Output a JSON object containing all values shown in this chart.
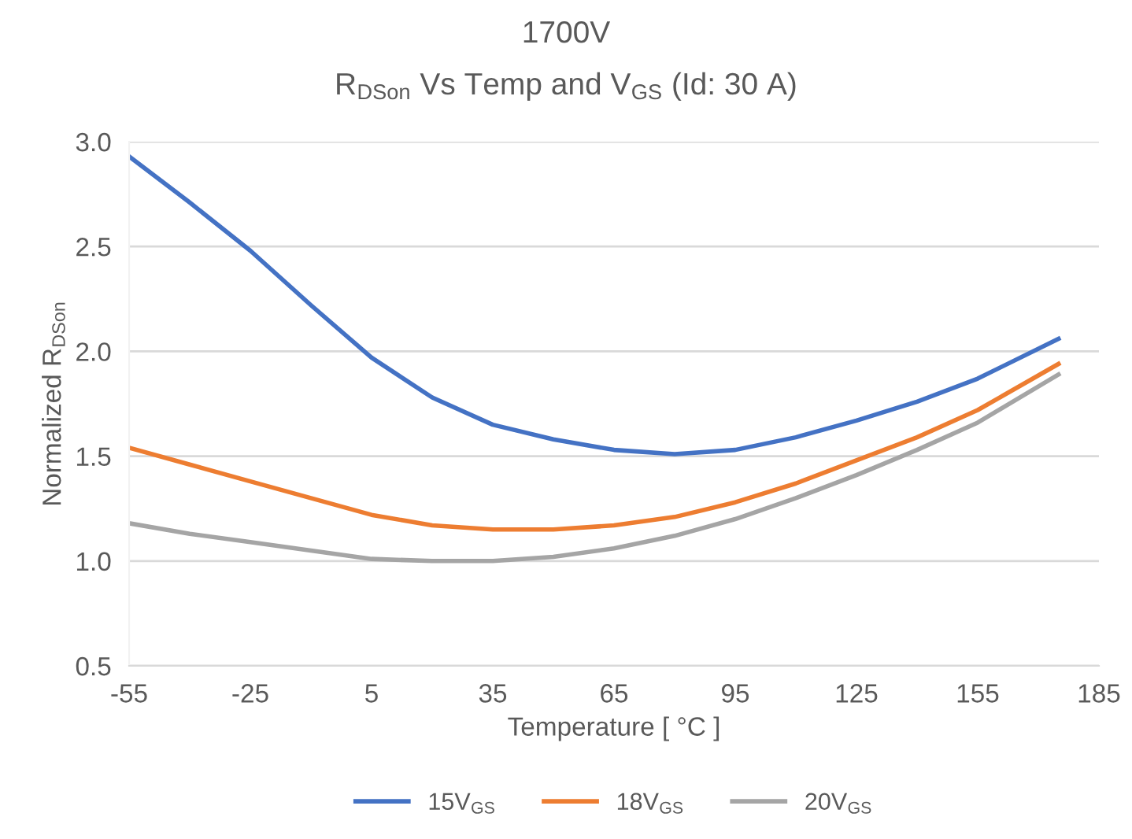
{
  "chart_data": {
    "type": "line",
    "title": "1700V",
    "subtitle": "R$_{DSon}$ Vs Temp and V$_{GS}$ (Id: 30 A)",
    "xlabel": "Temperature [ °C ]",
    "ylabel": "Normalized R$_{DSon}$",
    "x": [
      -55,
      -40,
      -25,
      -10,
      5,
      20,
      35,
      50,
      65,
      80,
      95,
      110,
      125,
      140,
      155,
      175
    ],
    "series": [
      {
        "name": "15V$_{GS}$",
        "color": "#4472c4",
        "values": [
          2.93,
          2.71,
          2.48,
          2.22,
          1.97,
          1.78,
          1.65,
          1.58,
          1.53,
          1.51,
          1.53,
          1.59,
          1.67,
          1.76,
          1.87,
          2.06
        ]
      },
      {
        "name": "18V$_{GS}$",
        "color": "#ed7d31",
        "values": [
          1.54,
          1.46,
          1.38,
          1.3,
          1.22,
          1.17,
          1.15,
          1.15,
          1.17,
          1.21,
          1.28,
          1.37,
          1.48,
          1.59,
          1.72,
          1.94
        ]
      },
      {
        "name": "20V$_{GS}$",
        "color": "#a5a5a5",
        "values": [
          1.18,
          1.13,
          1.09,
          1.05,
          1.01,
          1.0,
          1.0,
          1.02,
          1.06,
          1.12,
          1.2,
          1.3,
          1.41,
          1.53,
          1.66,
          1.89
        ]
      }
    ],
    "xlim": [
      -55,
      185
    ],
    "xticks": [
      -55,
      -25,
      5,
      35,
      65,
      95,
      125,
      155,
      185
    ],
    "ylim": [
      0.5,
      3.0
    ],
    "yticks": [
      {
        "value": 0.5,
        "label": "0.5"
      },
      {
        "value": 1.0,
        "label": "1.0"
      },
      {
        "value": 1.5,
        "label": "1.5"
      },
      {
        "value": 2.0,
        "label": "2.0"
      },
      {
        "value": 2.5,
        "label": "2.5"
      },
      {
        "value": 3.0,
        "label": "3.0"
      }
    ],
    "grid": "y",
    "legend": "bottom",
    "marker": "none",
    "line_style": "solid"
  }
}
